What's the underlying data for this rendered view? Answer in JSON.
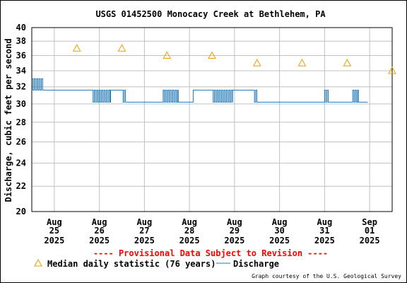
{
  "chart_data": {
    "type": "line",
    "title": "USGS 01452500 Monocacy Creek at Bethlehem, PA",
    "ylabel": "Discharge, cubic feet per second",
    "xlabel": "",
    "ylim": [
      20,
      40
    ],
    "log_scale_y": true,
    "grid": true,
    "y_ticks": [
      20,
      22,
      24,
      26,
      28,
      30,
      32,
      34,
      36,
      38,
      40
    ],
    "x_ticks": [
      {
        "month": "Aug",
        "day": "25",
        "year": "2025"
      },
      {
        "month": "Aug",
        "day": "26",
        "year": "2025"
      },
      {
        "month": "Aug",
        "day": "27",
        "year": "2025"
      },
      {
        "month": "Aug",
        "day": "28",
        "year": "2025"
      },
      {
        "month": "Aug",
        "day": "29",
        "year": "2025"
      },
      {
        "month": "Aug",
        "day": "30",
        "year": "2025"
      },
      {
        "month": "Aug",
        "day": "31",
        "year": "2025"
      },
      {
        "month": "Sep",
        "day": "01",
        "year": "2025"
      }
    ],
    "x_range": [
      "2025-08-24 12:00",
      "2025-09-01 12:00"
    ],
    "series": [
      {
        "name": "Median daily statistic (76 years)",
        "style": "triangle",
        "color": "#e8a000",
        "points": [
          {
            "x": "2025-08-25",
            "y": 37
          },
          {
            "x": "2025-08-26",
            "y": 37
          },
          {
            "x": "2025-08-27",
            "y": 36
          },
          {
            "x": "2025-08-28",
            "y": 36
          },
          {
            "x": "2025-08-29",
            "y": 35
          },
          {
            "x": "2025-08-30",
            "y": 35
          },
          {
            "x": "2025-08-31",
            "y": 35
          },
          {
            "x": "2025-09-01",
            "y": 34
          }
        ]
      },
      {
        "name": "Discharge",
        "style": "line",
        "color": "#1f77b4",
        "segments": [
          {
            "start": "2025-08-24 12:00",
            "end": "2025-08-24 18:00",
            "y": 31.6,
            "fluctuate": [
              33,
              31.6
            ]
          },
          {
            "start": "2025-08-24 18:00",
            "end": "2025-08-25 20:00",
            "y": 31.6
          },
          {
            "start": "2025-08-25 20:00",
            "end": "2025-08-26 06:00",
            "y": 31.6,
            "fluctuate": [
              31.6,
              30.2
            ]
          },
          {
            "start": "2025-08-26 06:00",
            "end": "2025-08-26 12:00",
            "y": 31.6
          },
          {
            "start": "2025-08-26 12:00",
            "end": "2025-08-26 14:00",
            "y": 31.6,
            "fluctuate": [
              31.6,
              30.2
            ]
          },
          {
            "start": "2025-08-26 14:00",
            "end": "2025-08-27 10:00",
            "y": 30.2
          },
          {
            "start": "2025-08-27 10:00",
            "end": "2025-08-27 18:00",
            "y": 30.2,
            "fluctuate": [
              31.6,
              30.2
            ]
          },
          {
            "start": "2025-08-27 18:00",
            "end": "2025-08-28 02:00",
            "y": 30.2
          },
          {
            "start": "2025-08-28 02:00",
            "end": "2025-08-28 12:00",
            "y": 31.6
          },
          {
            "start": "2025-08-28 12:00",
            "end": "2025-08-28 23:00",
            "y": 31.6,
            "fluctuate": [
              31.6,
              30.2
            ]
          },
          {
            "start": "2025-08-28 23:00",
            "end": "2025-08-29 10:00",
            "y": 31.6
          },
          {
            "start": "2025-08-29 10:00",
            "end": "2025-08-29 12:00",
            "y": 31.6,
            "fluctuate": [
              31.6,
              30.2
            ]
          },
          {
            "start": "2025-08-29 12:00",
            "end": "2025-08-31 00:00",
            "y": 30.2
          },
          {
            "start": "2025-08-31 00:00",
            "end": "2025-08-31 02:00",
            "y": 30.2,
            "fluctuate": [
              31.6,
              30.2
            ]
          },
          {
            "start": "2025-08-31 02:00",
            "end": "2025-08-31 15:00",
            "y": 30.2
          },
          {
            "start": "2025-08-31 15:00",
            "end": "2025-08-31 18:00",
            "y": 30.2,
            "fluctuate": [
              31.6,
              30.2
            ]
          },
          {
            "start": "2025-08-31 18:00",
            "end": "2025-08-31 23:00",
            "y": 30.2
          }
        ]
      }
    ]
  },
  "provisional_notice": "---- Provisional Data Subject to Revision ----",
  "legend": {
    "median_label": "Median daily statistic (76 years)",
    "discharge_label": "Discharge"
  },
  "credit": "Graph courtesy of the U.S. Geological Survey",
  "colors": {
    "grid": "#c0c0c0",
    "median": "#e8a000",
    "discharge": "#1f77b4",
    "provisional": "#ff0000"
  }
}
